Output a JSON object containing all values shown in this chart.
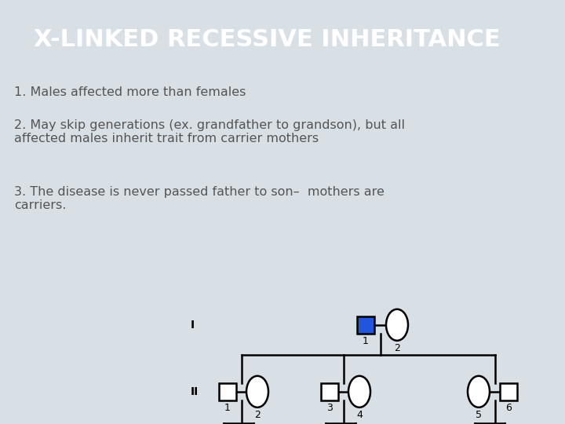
{
  "title": "X-LINKED RECESSIVE INHERITANCE",
  "title_bg": "#5f6e7a",
  "title_color": "#ffffff",
  "title_fontsize": 22,
  "bg_color": "#d8dfe5",
  "pedigree_bg": "#dde4ea",
  "text_color": "#555555",
  "text_fontsize": 11.5,
  "blue_fill": "#2255dd",
  "text_lines": [
    "1. Males affected more than females",
    "2. May skip generations (ex. grandfather to grandson), but all\naffected males inherit trait from carrier mothers",
    "3. The disease is never passed father to son–  mothers are\ncarriers."
  ]
}
